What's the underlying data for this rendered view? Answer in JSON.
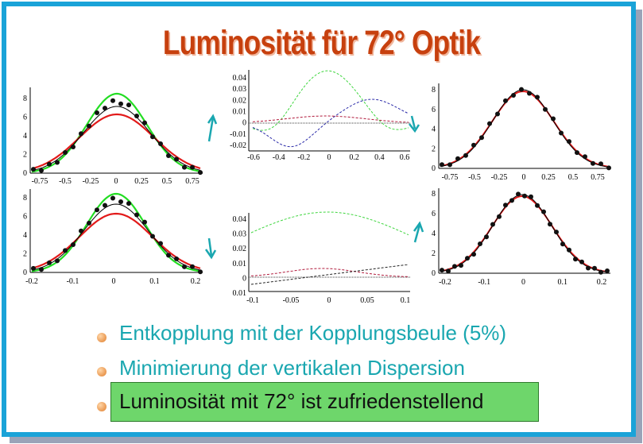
{
  "title": "Luminosität für 72° Optik",
  "bullets": [
    "Entkopplung mit der Kopplungsbeule (5%)",
    "Minimierung der vertikalen Dispersion",
    "Luminosität mit 72° ist zufriedenstellend"
  ],
  "colors": {
    "frame": "#1aa3d8",
    "title": "#c7400e",
    "bullet_text": "#1aa7b0",
    "highlight": "#6ed66b"
  },
  "panels": {
    "top_left": {
      "xticks": [
        "-0.75",
        "-0.5",
        "-0.25",
        "0",
        "0.25",
        "0.5",
        "0.75"
      ],
      "yticks": [
        "0",
        "2",
        "4",
        "6",
        "8"
      ]
    },
    "bottom_left": {
      "xticks": [
        "-0.2",
        "-0.1",
        "0",
        "0.1",
        "0.2"
      ],
      "yticks": [
        "0",
        "2",
        "4",
        "6",
        "8"
      ]
    },
    "top_mid": {
      "xticks": [
        "-0.6",
        "-0.4",
        "-0.2",
        "0",
        "0.2",
        "0.4",
        "0.6"
      ],
      "yticks": [
        "0.04",
        "0.03",
        "0.02",
        "0.01",
        "0",
        "-0.01",
        "-0.02"
      ]
    },
    "bottom_mid": {
      "xticks": [
        "-0.1",
        "-0.05",
        "0",
        "0.05",
        "0.1"
      ],
      "yticks": [
        "0.04",
        "0.03",
        "0.02",
        "0.01",
        "0",
        "0.01"
      ]
    },
    "top_right": {
      "xticks": [
        "-0.75",
        "-0.5",
        "-0.25",
        "0",
        "0.25",
        "0.5",
        "0.75"
      ],
      "yticks": [
        "0",
        "2",
        "4",
        "6",
        "8"
      ]
    },
    "bottom_right": {
      "xticks": [
        "-0.2",
        "-0.1",
        "0",
        "0.1",
        "0.2"
      ],
      "yticks": [
        "0",
        "2",
        "4",
        "6",
        "8"
      ]
    }
  }
}
